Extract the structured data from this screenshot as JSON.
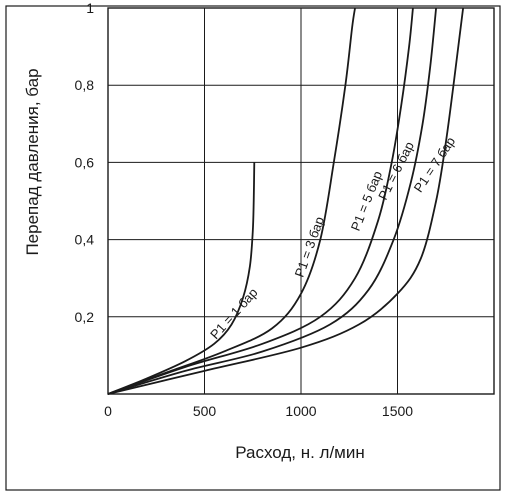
{
  "chart_data": {
    "type": "line",
    "title": "",
    "xlabel": "Расход, н. л/мин",
    "ylabel": "Перепад давления, бар",
    "xlim": [
      0,
      2000
    ],
    "ylim": [
      0,
      1
    ],
    "x_ticks": [
      0,
      500,
      1000,
      1500
    ],
    "x_tick_labels": [
      "0",
      "500",
      "1000",
      "1500"
    ],
    "y_ticks": [
      0.2,
      0.4,
      0.6,
      0.8,
      1.0
    ],
    "y_tick_labels": [
      "0,2",
      "0,4",
      "0,6",
      "0,8",
      "1"
    ],
    "grid": true,
    "legend": "none",
    "series": [
      {
        "name": "P1 = 1 бар",
        "points": [
          [
            0,
            0
          ],
          [
            200,
            0.04
          ],
          [
            400,
            0.085
          ],
          [
            550,
            0.13
          ],
          [
            640,
            0.18
          ],
          [
            700,
            0.25
          ],
          [
            735,
            0.33
          ],
          [
            750,
            0.42
          ],
          [
            755,
            0.5
          ],
          [
            758,
            0.6
          ]
        ],
        "label_at": [
          560,
          0.14
        ]
      },
      {
        "name": "P1 = 3 бар",
        "points": [
          [
            0,
            0
          ],
          [
            300,
            0.055
          ],
          [
            600,
            0.11
          ],
          [
            850,
            0.17
          ],
          [
            1000,
            0.26
          ],
          [
            1100,
            0.4
          ],
          [
            1170,
            0.6
          ],
          [
            1230,
            0.8
          ],
          [
            1265,
            0.95
          ],
          [
            1280,
            1.0
          ]
        ],
        "label_at": [
          1010,
          0.3
        ]
      },
      {
        "name": "P1 = 5 бар",
        "points": [
          [
            0,
            0
          ],
          [
            400,
            0.07
          ],
          [
            800,
            0.13
          ],
          [
            1100,
            0.2
          ],
          [
            1280,
            0.3
          ],
          [
            1400,
            0.45
          ],
          [
            1470,
            0.6
          ],
          [
            1520,
            0.75
          ],
          [
            1560,
            0.9
          ],
          [
            1580,
            1.0
          ]
        ],
        "label_at": [
          1300,
          0.42
        ]
      },
      {
        "name": "P1 = 6 бар",
        "points": [
          [
            0,
            0
          ],
          [
            400,
            0.06
          ],
          [
            800,
            0.11
          ],
          [
            1150,
            0.18
          ],
          [
            1350,
            0.27
          ],
          [
            1480,
            0.4
          ],
          [
            1570,
            0.55
          ],
          [
            1630,
            0.7
          ],
          [
            1670,
            0.85
          ],
          [
            1700,
            1.0
          ]
        ],
        "label_at": [
          1440,
          0.5
        ]
      },
      {
        "name": "P1 = 7 бар",
        "points": [
          [
            0,
            0
          ],
          [
            500,
            0.06
          ],
          [
            1000,
            0.12
          ],
          [
            1300,
            0.18
          ],
          [
            1500,
            0.26
          ],
          [
            1620,
            0.35
          ],
          [
            1700,
            0.5
          ],
          [
            1750,
            0.65
          ],
          [
            1790,
            0.8
          ],
          [
            1820,
            0.92
          ],
          [
            1840,
            1.0
          ]
        ],
        "label_at": [
          1620,
          0.52
        ]
      }
    ]
  }
}
